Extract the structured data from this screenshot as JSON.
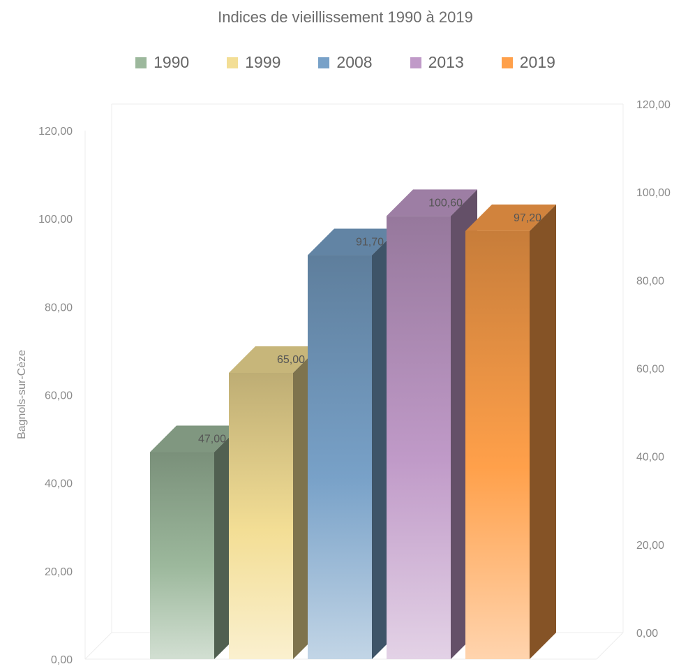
{
  "chart_data": {
    "type": "bar",
    "title": "Indices de vieillissement 1990 à 2019",
    "ylabel": "Bagnols-sur-Cèze",
    "categories": [
      "Bagnols-sur-Cèze"
    ],
    "ylim": [
      0,
      120
    ],
    "yticks": [
      "0,00",
      "20,00",
      "40,00",
      "60,00",
      "80,00",
      "100,00",
      "120,00"
    ],
    "legend_position": "top",
    "grid": false,
    "series": [
      {
        "name": "1990",
        "value": 47.0,
        "label": "47,00",
        "color": "#9cb89c"
      },
      {
        "name": "1999",
        "value": 65.0,
        "label": "65,00",
        "color": "#f3de95"
      },
      {
        "name": "2008",
        "value": 91.7,
        "label": "91,70",
        "color": "#78a1c8"
      },
      {
        "name": "2013",
        "value": 100.6,
        "label": "100,60",
        "color": "#c09ac8"
      },
      {
        "name": "2019",
        "value": 97.2,
        "label": "97,20",
        "color": "#ffa04a"
      }
    ]
  }
}
